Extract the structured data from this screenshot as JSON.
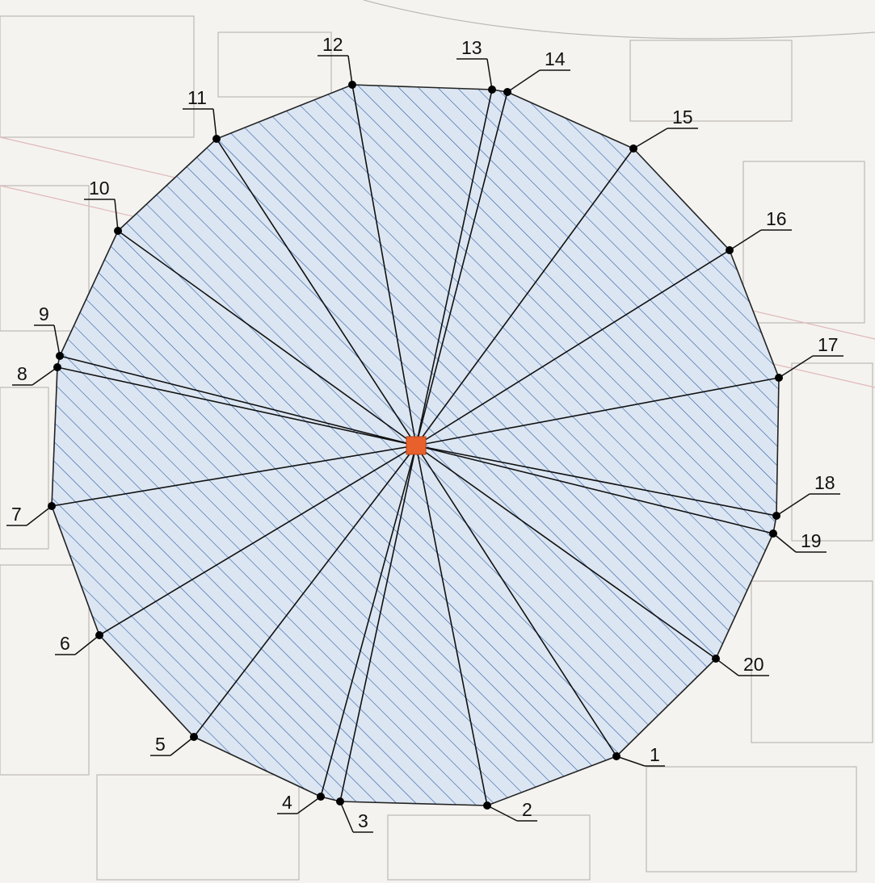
{
  "points": [
    {
      "label": "1"
    },
    {
      "label": "2"
    },
    {
      "label": "3"
    },
    {
      "label": "4"
    },
    {
      "label": "5"
    },
    {
      "label": "6"
    },
    {
      "label": "7"
    },
    {
      "label": "8"
    },
    {
      "label": "9"
    },
    {
      "label": "10"
    },
    {
      "label": "11"
    },
    {
      "label": "12"
    },
    {
      "label": "13"
    },
    {
      "label": "14"
    },
    {
      "label": "15"
    },
    {
      "label": "16"
    },
    {
      "label": "17"
    },
    {
      "label": "18"
    },
    {
      "label": "19"
    },
    {
      "label": "20"
    }
  ]
}
